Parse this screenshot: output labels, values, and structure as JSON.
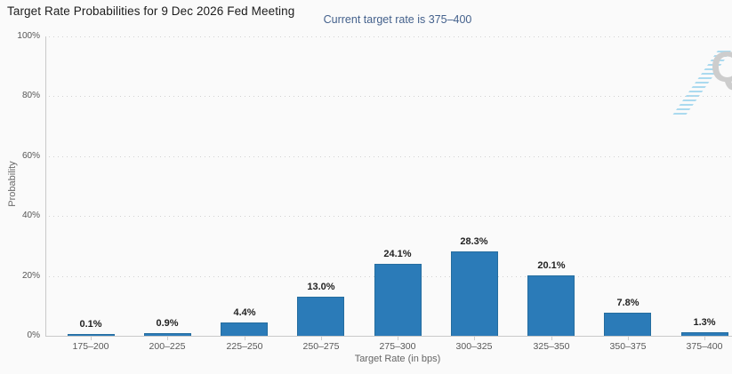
{
  "watermark": {
    "letter": "Q"
  },
  "colors": {
    "bar_fill": "#2b7bb8",
    "bar_border": "#256d9f",
    "subtitle_text": "#44618c",
    "axis_line": "#c9c9c9",
    "gridline": "#d2d2d2",
    "background": "#fafafa"
  },
  "chart_data": {
    "type": "bar",
    "title": "Target Rate Probabilities for 9 Dec 2026 Fed Meeting",
    "subtitle": "Current target rate is 375–400",
    "xlabel": "Target Rate (in bps)",
    "ylabel": "Probability",
    "categories": [
      "175–200",
      "200–225",
      "225–250",
      "250–275",
      "275–300",
      "300–325",
      "325–350",
      "350–375",
      "375–400"
    ],
    "values": [
      0.1,
      0.9,
      4.4,
      13.0,
      24.1,
      28.3,
      20.1,
      7.8,
      1.3
    ],
    "bar_labels": [
      "0.1%",
      "0.9%",
      "4.4%",
      "13.0%",
      "24.1%",
      "28.3%",
      "20.1%",
      "7.8%",
      "1.3%"
    ],
    "ylim": [
      0,
      100
    ],
    "ytick_values": [
      0,
      20,
      40,
      60,
      80,
      100
    ],
    "ytick_labels": [
      "0%",
      "20%",
      "40%",
      "60%",
      "80%",
      "100%"
    ],
    "grid": "horizontal dotted",
    "legend": "none",
    "bar_color": "#2b7bb8"
  }
}
